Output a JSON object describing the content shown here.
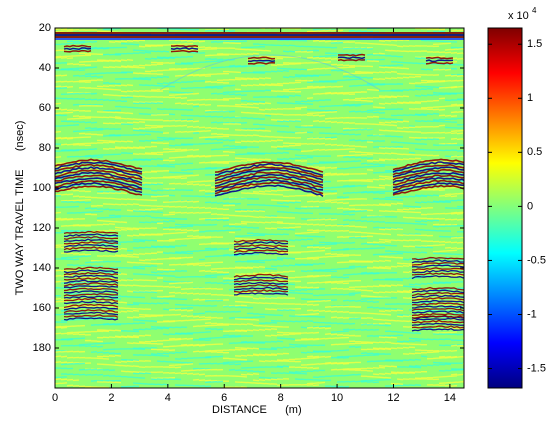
{
  "chart_data": {
    "type": "heatmap",
    "xlabel": "DISTANCE      (m)",
    "ylabel": "TWO WAY TRAVEL TIME      (nsec)",
    "xlim": [
      0,
      14.5
    ],
    "xticks": [
      0,
      2,
      4,
      6,
      8,
      10,
      12,
      14
    ],
    "ylim": [
      20,
      200
    ],
    "yticks": [
      20,
      40,
      60,
      80,
      100,
      120,
      140,
      160,
      180
    ],
    "y_reversed": true,
    "colormap": "jet",
    "clim": [
      -1.68,
      1.65
    ],
    "cticks": [
      -1.5,
      -1,
      -0.5,
      0,
      0.5,
      1,
      1.5
    ],
    "colorbar_multiplier": "x 10",
    "colorbar_exponent": "4",
    "grid": false
  }
}
